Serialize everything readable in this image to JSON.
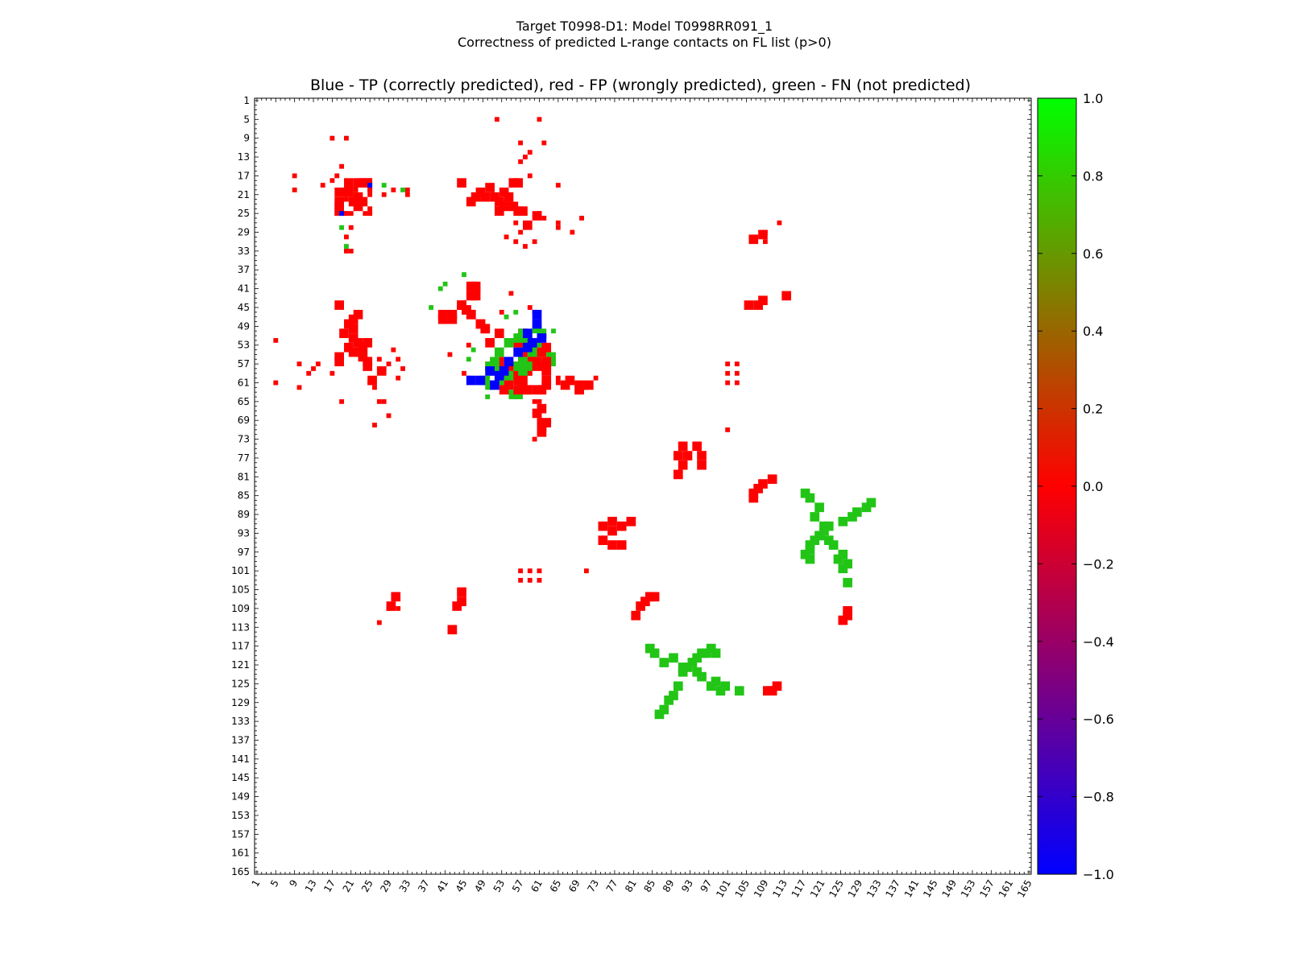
{
  "chart_data": {
    "type": "heatmap",
    "title_line1": "Target T0998-D1: Model T0998RR091_1",
    "title_line2": "Correctness of predicted L-range contacts on FL list (p>0)",
    "subtitle": "Blue - TP (correctly predicted), red - FP (wrongly predicted), green - FN (not predicted)",
    "xlabel": "",
    "ylabel": "",
    "range": [
      1,
      165
    ],
    "tick_labels": [
      1,
      5,
      9,
      13,
      17,
      21,
      25,
      29,
      33,
      37,
      41,
      45,
      49,
      53,
      57,
      61,
      65,
      69,
      73,
      77,
      81,
      85,
      89,
      93,
      97,
      101,
      105,
      109,
      113,
      117,
      121,
      125,
      129,
      133,
      137,
      141,
      145,
      149,
      153,
      157,
      161,
      165
    ],
    "colorbar": {
      "min": -1.0,
      "max": 1.0,
      "ticks": [
        "1.0",
        "0.8",
        "0.6",
        "0.4",
        "0.2",
        "0.0",
        "−0.2",
        "−0.4",
        "−0.6",
        "−0.8",
        "−1.0"
      ],
      "top_color": "#00ff00",
      "mid_color": "#ff0000",
      "bottom_color": "#0000ff"
    },
    "legend": {
      "tp": "blue",
      "fp": "red",
      "fn": "green"
    },
    "colors": {
      "tp": "#0000ff",
      "fp": "#ff0000",
      "fn": "#22c516"
    },
    "regions": [
      {
        "kind": "fp",
        "fill": true,
        "cells": [
          [
            18,
            44
          ],
          [
            22,
            52
          ],
          [
            24,
            52
          ],
          [
            24,
            56
          ],
          [
            20,
            53
          ],
          [
            18,
            55
          ],
          [
            19,
            50
          ],
          [
            22,
            46
          ],
          [
            18,
            56
          ],
          [
            21,
            51
          ]
        ]
      },
      {
        "kind": "fp",
        "fill": false,
        "cells": [
          [
            10,
            57
          ],
          [
            10,
            62
          ],
          [
            5,
            61
          ],
          [
            5,
            52
          ],
          [
            25,
            61
          ],
          [
            26,
            62
          ],
          [
            26,
            70
          ],
          [
            27,
            65
          ],
          [
            19,
            65
          ]
        ]
      },
      {
        "kind": "fp",
        "cells": [
          [
            28,
            58
          ],
          [
            29,
            57
          ],
          [
            28,
            65
          ],
          [
            29,
            68
          ],
          [
            31,
            60
          ],
          [
            30,
            54
          ],
          [
            31,
            56
          ],
          [
            32,
            58
          ]
        ]
      },
      {
        "kind": "fp",
        "fill": true,
        "cells": [
          [
            25,
            60
          ],
          [
            27,
            58
          ]
        ]
      },
      {
        "kind": "fp",
        "fill": true,
        "cells": [
          [
            18,
            20
          ],
          [
            18,
            24
          ],
          [
            18,
            22
          ],
          [
            20,
            20
          ],
          [
            21,
            22
          ],
          [
            22,
            23
          ],
          [
            23,
            18
          ]
        ]
      },
      {
        "kind": "fp",
        "fill": true,
        "cells": [
          [
            21,
            47
          ],
          [
            20,
            48
          ],
          [
            21,
            49
          ],
          [
            23,
            53
          ],
          [
            23,
            55
          ],
          [
            24,
            57
          ],
          [
            21,
            54
          ]
        ]
      },
      {
        "kind": "fp",
        "fill": false,
        "cells": [
          [
            17,
            9
          ],
          [
            20,
            9
          ],
          [
            19,
            15
          ],
          [
            18,
            17
          ],
          [
            20,
            22
          ],
          [
            20,
            25
          ],
          [
            21,
            25
          ],
          [
            18,
            25
          ],
          [
            20,
            25
          ],
          [
            21,
            28
          ],
          [
            20,
            30
          ],
          [
            20,
            33
          ],
          [
            21,
            33
          ],
          [
            24,
            25
          ],
          [
            25,
            25
          ]
        ]
      },
      {
        "kind": "fn",
        "fill": false,
        "cells": [
          [
            19,
            25
          ],
          [
            19,
            28
          ],
          [
            20,
            32
          ]
        ]
      },
      {
        "kind": "tp",
        "fill": false,
        "cells": [
          [
            19,
            25
          ]
        ]
      },
      {
        "kind": "fp",
        "fill": true,
        "cells": [
          [
            46,
            40
          ],
          [
            47,
            40
          ],
          [
            47,
            42
          ],
          [
            46,
            42
          ],
          [
            44,
            44
          ],
          [
            45,
            45
          ],
          [
            46,
            46
          ],
          [
            48,
            48
          ],
          [
            49,
            49
          ],
          [
            50,
            52
          ],
          [
            50,
            57
          ],
          [
            52,
            56
          ],
          [
            52,
            58
          ],
          [
            52,
            60
          ],
          [
            53,
            59
          ],
          [
            53,
            62
          ],
          [
            54,
            61
          ],
          [
            55,
            57
          ],
          [
            56,
            60
          ],
          [
            57,
            59
          ],
          [
            58,
            58
          ],
          [
            59,
            56
          ],
          [
            59,
            55
          ],
          [
            58,
            57
          ]
        ]
      },
      {
        "kind": "fp",
        "fill": false,
        "cells": [
          [
            42,
            55
          ],
          [
            46,
            53
          ],
          [
            45,
            44
          ],
          [
            48,
            41
          ],
          [
            45,
            59
          ],
          [
            46,
            60
          ]
        ]
      },
      {
        "kind": "fn",
        "fill": true,
        "cells": [
          [
            49,
            60
          ],
          [
            50,
            61
          ],
          [
            52,
            60
          ],
          [
            53,
            59
          ],
          [
            54,
            59
          ],
          [
            51,
            56
          ],
          [
            50,
            57
          ],
          [
            51,
            58
          ],
          [
            52,
            54
          ],
          [
            55,
            63
          ],
          [
            56,
            63
          ],
          [
            57,
            56
          ],
          [
            58,
            57
          ]
        ]
      },
      {
        "kind": "fn",
        "fill": false,
        "cells": [
          [
            45,
            38
          ],
          [
            41,
            40
          ],
          [
            46,
            56
          ],
          [
            47,
            54
          ],
          [
            50,
            64
          ]
        ]
      },
      {
        "kind": "tp",
        "fill": true,
        "cells": [
          [
            46,
            60
          ],
          [
            48,
            60
          ],
          [
            50,
            58
          ],
          [
            51,
            61
          ],
          [
            52,
            59
          ],
          [
            53,
            58
          ],
          [
            54,
            56
          ]
        ]
      },
      {
        "kind": "fp",
        "fill": true,
        "cells": [
          [
            58,
            62
          ],
          [
            60,
            62
          ],
          [
            61,
            62
          ],
          [
            61,
            57
          ],
          [
            62,
            58
          ],
          [
            62,
            56
          ],
          [
            60,
            67
          ],
          [
            61,
            66
          ],
          [
            61,
            69
          ],
          [
            62,
            69
          ],
          [
            61,
            71
          ]
        ]
      },
      {
        "kind": "fp",
        "fill": false,
        "cells": [
          [
            60,
            65
          ],
          [
            61,
            65
          ],
          [
            61,
            68
          ],
          [
            63,
            69
          ],
          [
            62,
            71
          ],
          [
            60,
            73
          ],
          [
            56,
            27
          ],
          [
            59,
            17
          ],
          [
            57,
            14
          ],
          [
            58,
            13
          ],
          [
            59,
            12
          ]
        ]
      },
      {
        "kind": "fp",
        "fill": false,
        "cells": [
          [
            101,
            57
          ],
          [
            103,
            57
          ],
          [
            101,
            59
          ],
          [
            103,
            59
          ],
          [
            103,
            61
          ],
          [
            101,
            61
          ],
          [
            101,
            71
          ],
          [
            109,
            29
          ],
          [
            109,
            31
          ],
          [
            112,
            27
          ]
        ]
      },
      {
        "kind": "fp",
        "fill": true,
        "cells": [
          [
            113,
            42
          ],
          [
            108,
            43
          ],
          [
            107,
            44
          ],
          [
            105,
            44
          ],
          [
            108,
            29
          ],
          [
            106,
            30
          ]
        ]
      },
      {
        "kind": "fp",
        "fill": true,
        "cells": [
          [
            91,
            74
          ],
          [
            91,
            78
          ],
          [
            90,
            76
          ],
          [
            90,
            80
          ],
          [
            92,
            76
          ],
          [
            94,
            74
          ],
          [
            95,
            76
          ],
          [
            95,
            78
          ]
        ]
      },
      {
        "kind": "fp",
        "fill": true,
        "cells": [
          [
            81,
            110
          ],
          [
            82,
            108
          ],
          [
            83,
            107
          ],
          [
            84,
            106
          ],
          [
            85,
            106
          ]
        ]
      },
      {
        "kind": "fn",
        "fill": true,
        "cells": [
          [
            86,
            131
          ],
          [
            87,
            130
          ],
          [
            88,
            128
          ],
          [
            89,
            127
          ],
          [
            90,
            125
          ],
          [
            91,
            122
          ],
          [
            92,
            121
          ],
          [
            93,
            120
          ],
          [
            94,
            119
          ],
          [
            95,
            118
          ],
          [
            96,
            118
          ],
          [
            97,
            117
          ],
          [
            98,
            118
          ]
        ]
      },
      {
        "kind": "fp",
        "fill": true,
        "cells": [
          [
            111,
            125
          ],
          [
            109,
            126
          ],
          [
            110,
            126
          ]
        ]
      },
      {
        "kind": "fn",
        "fill": true,
        "cells": [
          [
            117,
            84
          ],
          [
            118,
            85
          ],
          [
            120,
            87
          ],
          [
            119,
            89
          ],
          [
            121,
            91
          ],
          [
            120,
            93
          ],
          [
            122,
            94
          ],
          [
            123,
            95
          ],
          [
            124,
            98
          ],
          [
            125,
            97
          ],
          [
            126,
            99
          ],
          [
            125,
            100
          ],
          [
            126,
            103
          ]
        ]
      }
    ]
  }
}
